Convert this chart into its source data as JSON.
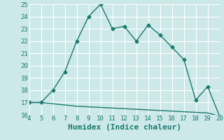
{
  "title": "",
  "xlabel": "Humidex (Indice chaleur)",
  "ylabel": "",
  "background_color": "#cce8e8",
  "grid_color": "#ffffff",
  "line_color": "#1a7a6e",
  "xlim": [
    4,
    20
  ],
  "ylim": [
    16,
    25
  ],
  "xticks": [
    4,
    5,
    6,
    7,
    8,
    9,
    10,
    11,
    12,
    13,
    14,
    15,
    16,
    17,
    18,
    19,
    20
  ],
  "yticks": [
    16,
    17,
    18,
    19,
    20,
    21,
    22,
    23,
    24,
    25
  ],
  "curve1_x": [
    4,
    5,
    6,
    7,
    8,
    9,
    10,
    11,
    12,
    13,
    14,
    15,
    16,
    17,
    18,
    19,
    20
  ],
  "curve1_y": [
    17.0,
    17.0,
    18.0,
    19.5,
    22.0,
    24.0,
    25.0,
    23.0,
    23.2,
    22.0,
    23.3,
    22.5,
    21.5,
    20.5,
    17.2,
    18.3,
    15.9
  ],
  "curve2_x": [
    4,
    5,
    6,
    7,
    8,
    9,
    10,
    11,
    12,
    13,
    14,
    15,
    16,
    17,
    18,
    19,
    20
  ],
  "curve2_y": [
    17.0,
    17.0,
    16.9,
    16.8,
    16.7,
    16.65,
    16.6,
    16.55,
    16.5,
    16.45,
    16.4,
    16.35,
    16.3,
    16.25,
    16.2,
    16.15,
    15.9
  ],
  "marker_style": "D",
  "marker_size": 2.5,
  "line_width": 1.0,
  "font_color": "#1a7a6e",
  "tick_label_fontsize": 6.5,
  "xlabel_fontsize": 8.0
}
